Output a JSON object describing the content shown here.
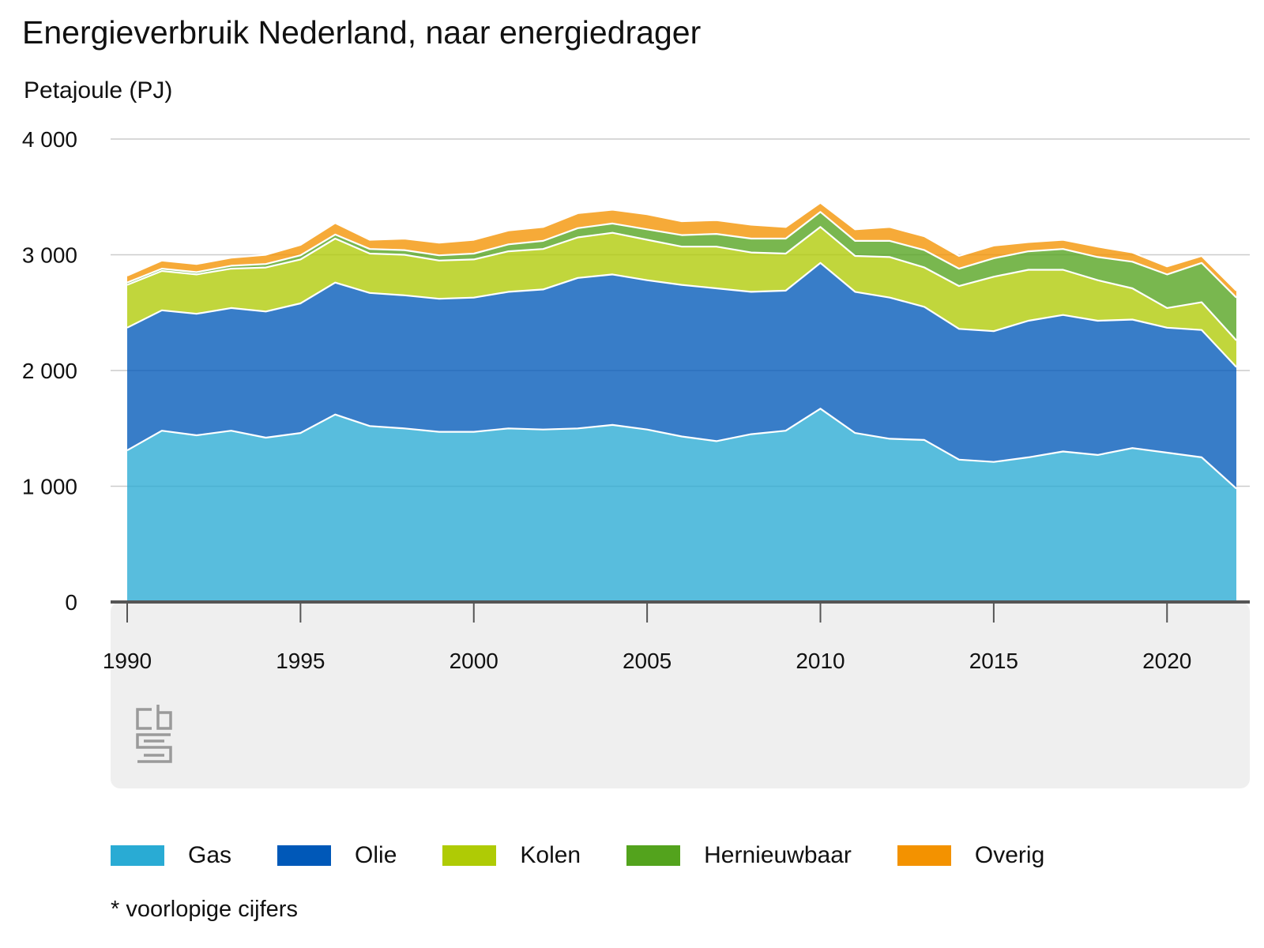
{
  "title": "Energieverbruik Nederland, naar energiedrager",
  "unit_label": "Petajoule (PJ)",
  "footnote": "* voorlopige cijfers",
  "chart_data": {
    "type": "area",
    "stacked": true,
    "title": "Energieverbruik Nederland, naar energiedrager",
    "ylabel": "Petajoule (PJ)",
    "xlabel": "",
    "ylim": [
      0,
      4000
    ],
    "y_ticks": [
      0,
      1000,
      2000,
      3000,
      4000
    ],
    "y_tick_labels": [
      "0",
      "1 000",
      "2 000",
      "3 000",
      "4 000"
    ],
    "x": [
      1990,
      1991,
      1992,
      1993,
      1994,
      1995,
      1996,
      1997,
      1998,
      1999,
      2000,
      2001,
      2002,
      2003,
      2004,
      2005,
      2006,
      2007,
      2008,
      2009,
      2010,
      2011,
      2012,
      2013,
      2014,
      2015,
      2016,
      2017,
      2018,
      2019,
      2020,
      2021,
      2022
    ],
    "x_ticks": [
      1990,
      1995,
      2000,
      2005,
      2010,
      2015,
      2020
    ],
    "x_tick_labels": [
      "1990",
      "1995",
      "2000",
      "2005",
      "2010",
      "2015",
      "2020"
    ],
    "grid": true,
    "legend_position": "bottom",
    "series": [
      {
        "name": "Gas",
        "color": "#29abd4",
        "values": [
          1310,
          1480,
          1440,
          1480,
          1420,
          1460,
          1620,
          1520,
          1500,
          1470,
          1470,
          1500,
          1490,
          1500,
          1530,
          1490,
          1430,
          1390,
          1450,
          1480,
          1670,
          1460,
          1410,
          1400,
          1230,
          1210,
          1250,
          1300,
          1270,
          1330,
          1290,
          1250,
          980
        ]
      },
      {
        "name": "Olie",
        "color": "#0058b8",
        "values": [
          1060,
          1040,
          1050,
          1060,
          1090,
          1120,
          1140,
          1150,
          1150,
          1150,
          1160,
          1180,
          1210,
          1300,
          1300,
          1290,
          1310,
          1320,
          1230,
          1210,
          1260,
          1220,
          1220,
          1150,
          1130,
          1130,
          1180,
          1180,
          1160,
          1110,
          1080,
          1100,
          1050
        ]
      },
      {
        "name": "Kolen",
        "color": "#afcb05",
        "values": [
          370,
          340,
          340,
          340,
          380,
          380,
          380,
          340,
          350,
          330,
          330,
          350,
          350,
          350,
          360,
          350,
          330,
          360,
          340,
          320,
          310,
          310,
          350,
          340,
          370,
          470,
          440,
          390,
          350,
          270,
          170,
          240,
          230
        ]
      },
      {
        "name": "Hernieuwbaar",
        "color": "#53a31d",
        "values": [
          20,
          20,
          20,
          25,
          30,
          35,
          35,
          40,
          40,
          45,
          50,
          60,
          70,
          80,
          80,
          90,
          100,
          110,
          120,
          130,
          130,
          130,
          140,
          150,
          150,
          160,
          160,
          180,
          200,
          230,
          290,
          340,
          370
        ]
      },
      {
        "name": "Overig",
        "color": "#f39200",
        "values": [
          60,
          70,
          70,
          70,
          80,
          90,
          100,
          80,
          100,
          110,
          120,
          120,
          120,
          130,
          120,
          130,
          120,
          120,
          120,
          100,
          80,
          100,
          120,
          120,
          110,
          110,
          80,
          80,
          90,
          80,
          70,
          60,
          60
        ]
      }
    ]
  }
}
